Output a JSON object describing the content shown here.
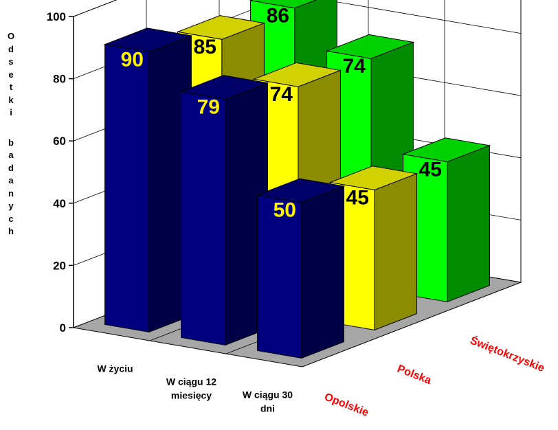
{
  "chart_data": {
    "type": "bar",
    "variant": "3d-grouped",
    "title": "",
    "ylabel": "Odsetki badanych",
    "ylim": [
      0,
      100
    ],
    "yticks": [
      0,
      20,
      40,
      60,
      80,
      100
    ],
    "categories": [
      "W życiu",
      "W ciągu 12 miesięcy",
      "W ciągu 30 dni"
    ],
    "category_lines": [
      [
        "W życiu"
      ],
      [
        "W ciągu 12",
        "miesięcy"
      ],
      [
        "W ciągu 30",
        "dni"
      ]
    ],
    "series": [
      {
        "name": "Opolskie",
        "values": [
          90,
          79,
          50
        ],
        "color": "#000080",
        "label_color": "#FFF200"
      },
      {
        "name": "Polska",
        "values": [
          85,
          74,
          45
        ],
        "color": "#FFFF00",
        "label_color": "#000000"
      },
      {
        "name": "Świętokrzyskie",
        "values": [
          86,
          74,
          45
        ],
        "color": "#00FF00",
        "label_color": "#000000"
      }
    ],
    "series_label_color": "#FF0000",
    "grid": true,
    "legend": "none"
  }
}
